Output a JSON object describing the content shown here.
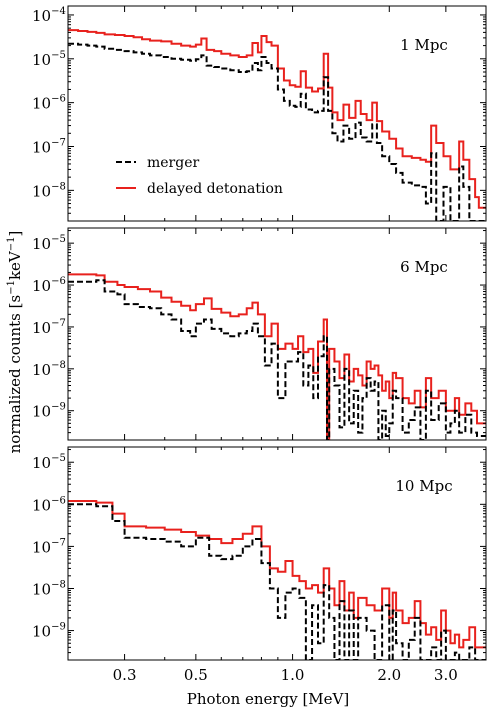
{
  "colors": {
    "merger": "#000000",
    "delayed_detonation": "#e8211d"
  },
  "chart_data": {
    "type": "line",
    "drawstyle": "steps",
    "x_scale": "log",
    "y_scale": "log",
    "xlim": [
      0.2,
      4.0
    ],
    "xlabel": "Photon energy [MeV]",
    "ylabel": "normalized counts [s^-1 keV^-1]",
    "ylabel_parts": {
      "main": "normalized counts [s",
      "sup1": "−1",
      "mid": "keV",
      "sup2": "−1",
      "end": "]"
    },
    "x_ticks": [
      0.3,
      0.5,
      1.0,
      2.0,
      3.0
    ],
    "x_tick_labels": [
      "0.3",
      "0.5",
      "1.0",
      "2.0",
      "3.0"
    ],
    "legend": {
      "placement": "center-left",
      "panel": 0,
      "entries": [
        {
          "series": "merger",
          "label": "merger",
          "style": "dashed"
        },
        {
          "series": "delayed_detonation",
          "label": "delayed detonation",
          "style": "solid"
        }
      ]
    },
    "panels": [
      {
        "annotation": "1 Mpc",
        "ylim": [
          2e-09,
          0.00016
        ],
        "y_ticks": [
          {
            "exp": -8,
            "label": "10"
          },
          {
            "exp": -7,
            "label": "10"
          },
          {
            "exp": -6,
            "label": "10"
          },
          {
            "exp": -5,
            "label": "10"
          },
          {
            "exp": -4,
            "label": "10"
          }
        ],
        "series": [
          {
            "key": "delayed_detonation",
            "x": [
              0.2,
              0.215,
              0.23,
              0.245,
              0.26,
              0.28,
              0.3,
              0.32,
              0.34,
              0.36,
              0.39,
              0.42,
              0.45,
              0.48,
              0.5,
              0.52,
              0.54,
              0.57,
              0.6,
              0.64,
              0.68,
              0.72,
              0.75,
              0.78,
              0.8,
              0.83,
              0.86,
              0.9,
              0.94,
              0.98,
              1.02,
              1.06,
              1.1,
              1.15,
              1.2,
              1.25,
              1.29,
              1.33,
              1.38,
              1.44,
              1.5,
              1.57,
              1.63,
              1.7,
              1.77,
              1.83,
              1.9,
              2.0,
              2.1,
              2.2,
              2.35,
              2.5,
              2.6,
              2.7,
              2.8,
              2.95,
              3.1,
              3.3,
              3.4,
              3.55,
              3.7,
              3.8
            ],
            "y": [
              4.5e-05,
              4.3e-05,
              4.1e-05,
              3.9e-05,
              3.6e-05,
              3.5e-05,
              3.3e-05,
              3.1e-05,
              2.8e-05,
              2.6e-05,
              2.5e-05,
              2.2e-05,
              2e-05,
              1.9e-05,
              2.1e-05,
              2.9e-05,
              1.6e-05,
              1.5e-05,
              1.3e-05,
              1.2e-05,
              1.1e-05,
              1.2e-05,
              2.3e-05,
              1.4e-05,
              3.3e-05,
              2.4e-05,
              2e-05,
              6e-06,
              3.2e-06,
              2.5e-06,
              2.3e-06,
              5.2e-06,
              2.2e-06,
              1.8e-06,
              2.1e-06,
              1.3e-05,
              2.2e-06,
              6e-07,
              4e-07,
              9e-07,
              4.5e-07,
              1.1e-06,
              5.5e-07,
              4e-07,
              1e-06,
              3.8e-07,
              2.2e-07,
              1.5e-07,
              9e-08,
              6e-08,
              5.5e-08,
              5e-08,
              4.5e-08,
              3e-07,
              1.2e-07,
              6e-08,
              3e-08,
              1.3e-07,
              5e-08,
              1.8e-08,
              7e-09,
              4e-09
            ]
          },
          {
            "key": "merger",
            "x": [
              0.2,
              0.215,
              0.23,
              0.245,
              0.26,
              0.28,
              0.3,
              0.32,
              0.34,
              0.36,
              0.39,
              0.42,
              0.45,
              0.48,
              0.5,
              0.52,
              0.54,
              0.57,
              0.6,
              0.64,
              0.68,
              0.72,
              0.75,
              0.78,
              0.8,
              0.83,
              0.86,
              0.9,
              0.94,
              0.98,
              1.02,
              1.06,
              1.1,
              1.15,
              1.2,
              1.25,
              1.29,
              1.33,
              1.38,
              1.44,
              1.5,
              1.57,
              1.63,
              1.7,
              1.77,
              1.83,
              1.9,
              2.0,
              2.1,
              2.2,
              2.35,
              2.5,
              2.6,
              2.7,
              2.8,
              2.95,
              3.1,
              3.3,
              3.4,
              3.55,
              3.7,
              3.8
            ],
            "y": [
              2.2e-05,
              2.1e-05,
              2e-05,
              1.9e-05,
              1.7e-05,
              1.6e-05,
              1.5e-05,
              1.4e-05,
              1.3e-05,
              1.2e-05,
              1.1e-05,
              1e-05,
              9.5e-06,
              9e-06,
              9.8e-06,
              1.2e-05,
              7e-06,
              6.5e-06,
              6e-06,
              5.5e-06,
              5e-06,
              5.2e-06,
              8e-06,
              5.5e-06,
              1.1e-05,
              8e-06,
              6e-06,
              2e-06,
              1.1e-06,
              8.5e-07,
              8e-07,
              1.6e-06,
              7e-07,
              6e-07,
              6.5e-07,
              3.8e-06,
              6.5e-07,
              2e-07,
              1.3e-07,
              3e-07,
              1.5e-07,
              3.5e-07,
              1.6e-07,
              1.3e-07,
              3.2e-07,
              1.2e-07,
              6e-08,
              4e-08,
              2.5e-08,
              1.5e-08,
              1.3e-08,
              1.2e-08,
              5e-09,
              7e-08,
              2e-09,
              1.2e-08,
              2e-09,
              3.5e-08,
              1.2e-08,
              2e-09,
              2e-09,
              2e-09
            ]
          }
        ]
      },
      {
        "annotation": "6 Mpc",
        "ylim": [
          2e-10,
          2.3e-05
        ],
        "y_ticks": [
          {
            "exp": -9,
            "label": "10"
          },
          {
            "exp": -8,
            "label": "10"
          },
          {
            "exp": -7,
            "label": "10"
          },
          {
            "exp": -6,
            "label": "10"
          },
          {
            "exp": -5,
            "label": "10"
          }
        ],
        "series": [
          {
            "key": "delayed_detonation",
            "x": [
              0.2,
              0.245,
              0.26,
              0.285,
              0.3,
              0.33,
              0.36,
              0.39,
              0.42,
              0.45,
              0.48,
              0.5,
              0.53,
              0.56,
              0.6,
              0.64,
              0.68,
              0.72,
              0.75,
              0.78,
              0.82,
              0.86,
              0.9,
              0.95,
              1.0,
              1.04,
              1.08,
              1.12,
              1.16,
              1.2,
              1.25,
              1.28,
              1.3,
              1.35,
              1.4,
              1.45,
              1.5,
              1.55,
              1.6,
              1.65,
              1.7,
              1.75,
              1.8,
              1.85,
              1.9,
              1.95,
              2.0,
              2.05,
              2.1,
              2.2,
              2.3,
              2.4,
              2.5,
              2.6,
              2.7,
              2.85,
              3.0,
              3.1,
              3.2,
              3.3,
              3.45,
              3.6,
              3.75
            ],
            "y": [
              1.8e-06,
              1.7e-06,
              1.2e-06,
              1e-06,
              9e-07,
              8e-07,
              7e-07,
              5e-07,
              4e-07,
              3.2e-07,
              2.5e-07,
              3.5e-07,
              4.8e-07,
              2.7e-07,
              2.2e-07,
              1.8e-07,
              2e-07,
              2.8e-07,
              3.8e-07,
              2e-07,
              6e-08,
              1.2e-07,
              3e-08,
              4e-08,
              3e-08,
              6e-08,
              2.5e-08,
              3e-08,
              8e-09,
              4.5e-08,
              1.5e-07,
              2e-10,
              3e-08,
              1.5e-08,
              6e-09,
              2.2e-08,
              5e-09,
              1e-08,
              7e-09,
              4e-09,
              1.5e-08,
              1e-08,
              1.2e-08,
              7e-09,
              3e-09,
              5e-09,
              2e-09,
              8e-09,
              6e-09,
              2e-09,
              1.5e-09,
              3e-09,
              1.2e-09,
              6e-09,
              2e-09,
              3e-09,
              1e-09,
              1e-09,
              2e-09,
              8e-10,
              1.5e-09,
              1e-09,
              5e-10
            ]
          },
          {
            "key": "merger",
            "x": [
              0.2,
              0.245,
              0.26,
              0.285,
              0.3,
              0.33,
              0.36,
              0.39,
              0.42,
              0.45,
              0.48,
              0.5,
              0.53,
              0.56,
              0.6,
              0.64,
              0.68,
              0.72,
              0.75,
              0.78,
              0.82,
              0.86,
              0.9,
              0.95,
              1.0,
              1.04,
              1.08,
              1.12,
              1.16,
              1.2,
              1.25,
              1.28,
              1.3,
              1.35,
              1.4,
              1.45,
              1.5,
              1.55,
              1.6,
              1.65,
              1.7,
              1.75,
              1.8,
              1.85,
              1.9,
              1.95,
              2.0,
              2.05,
              2.1,
              2.2,
              2.3,
              2.4,
              2.5,
              2.6,
              2.7,
              2.85,
              3.0,
              3.1,
              3.2,
              3.3,
              3.45,
              3.6,
              3.75
            ],
            "y": [
              1.2e-06,
              1.3e-06,
              7e-07,
              6e-07,
              3.5e-07,
              3e-07,
              2.8e-07,
              2e-07,
              1.5e-07,
              8e-08,
              6e-08,
              1.2e-07,
              1.5e-07,
              9e-08,
              7e-08,
              6e-08,
              7e-08,
              8e-08,
              1.2e-07,
              6e-08,
              1.2e-08,
              4e-08,
              2e-09,
              1.5e-08,
              1.5e-08,
              2.5e-08,
              4e-09,
              1.2e-08,
              2e-09,
              2e-08,
              6e-08,
              2e-10,
              1e-08,
              4e-09,
              4e-10,
              1e-08,
              5e-10,
              3e-09,
              3e-10,
              2e-09,
              6e-09,
              3e-09,
              5e-09,
              2e-10,
              1e-09,
              2.5e-10,
              5e-10,
              3e-09,
              2e-09,
              3e-10,
              6e-10,
              1.2e-09,
              2e-10,
              3e-09,
              6e-10,
              1.5e-09,
              3e-10,
              5e-10,
              1e-09,
              3e-10,
              8e-10,
              3e-10,
              2.5e-10
            ]
          }
        ]
      },
      {
        "annotation": "10 Mpc",
        "ylim": [
          2e-10,
          2.3e-05
        ],
        "y_ticks": [
          {
            "exp": -9,
            "label": "10"
          },
          {
            "exp": -8,
            "label": "10"
          },
          {
            "exp": -7,
            "label": "10"
          },
          {
            "exp": -6,
            "label": "10"
          },
          {
            "exp": -5,
            "label": "10"
          }
        ],
        "series": [
          {
            "key": "delayed_detonation",
            "x": [
              0.2,
              0.245,
              0.275,
              0.3,
              0.35,
              0.4,
              0.45,
              0.5,
              0.55,
              0.6,
              0.65,
              0.7,
              0.75,
              0.8,
              0.85,
              0.9,
              0.95,
              1.0,
              1.05,
              1.1,
              1.15,
              1.2,
              1.25,
              1.3,
              1.35,
              1.4,
              1.45,
              1.5,
              1.55,
              1.6,
              1.7,
              1.8,
              1.9,
              2.0,
              2.05,
              2.1,
              2.2,
              2.3,
              2.4,
              2.5,
              2.6,
              2.7,
              2.8,
              2.9,
              3.0,
              3.1,
              3.2,
              3.3,
              3.4,
              3.55,
              3.7,
              3.8
            ],
            "y": [
              1.2e-06,
              1.1e-06,
              6e-07,
              3e-07,
              2.8e-07,
              2.5e-07,
              2.2e-07,
              1.8e-07,
              1.5e-07,
              1.2e-07,
              1.5e-07,
              2e-07,
              3e-07,
              1e-07,
              3e-08,
              2.5e-08,
              4.5e-08,
              2e-08,
              1.5e-08,
              1e-08,
              1.2e-08,
              8e-09,
              3e-08,
              1e-08,
              4e-09,
              1.5e-08,
              3e-09,
              8e-09,
              2e-09,
              6e-09,
              4e-09,
              3e-09,
              1e-08,
              2e-09,
              8e-09,
              3e-09,
              1.5e-09,
              2e-09,
              5e-09,
              1.5e-09,
              8e-10,
              1.2e-09,
              6e-10,
              3e-09,
              1e-09,
              5e-10,
              8e-10,
              4e-10,
              6e-10,
              1.2e-09,
              4e-10,
              4e-10
            ]
          },
          {
            "key": "merger",
            "x": [
              0.2,
              0.245,
              0.275,
              0.3,
              0.35,
              0.4,
              0.45,
              0.5,
              0.55,
              0.6,
              0.65,
              0.7,
              0.75,
              0.8,
              0.85,
              0.9,
              0.95,
              1.0,
              1.05,
              1.1,
              1.15,
              1.2,
              1.25,
              1.3,
              1.35,
              1.4,
              1.45,
              1.5,
              1.55,
              1.6,
              1.7,
              1.8,
              1.9,
              2.0,
              2.05,
              2.1,
              2.2,
              2.3,
              2.4,
              2.5,
              2.6,
              2.7,
              2.8,
              2.9,
              3.0,
              3.1,
              3.2,
              3.3,
              3.4,
              3.55,
              3.7,
              3.8
            ],
            "y": [
              1e-06,
              9e-07,
              4e-07,
              1.6e-07,
              1.5e-07,
              1.3e-07,
              1e-07,
              1.6e-07,
              6e-08,
              5e-08,
              6e-08,
              1e-07,
              1.5e-07,
              4e-08,
              1e-08,
              2e-09,
              8e-09,
              1e-08,
              6e-09,
              2e-10,
              4e-09,
              5e-10,
              1.2e-08,
              2e-09,
              2e-10,
              5e-09,
              2e-10,
              3e-09,
              2e-10,
              2e-09,
              1e-09,
              2e-10,
              4e-09,
              2e-10,
              3e-09,
              5e-10,
              2e-10,
              6e-10,
              2e-09,
              2e-10,
              2e-10,
              4e-10,
              2e-10,
              1e-09,
              2e-10,
              2e-10,
              3e-10,
              2e-10,
              2e-10,
              4e-10,
              2e-10,
              2e-10
            ]
          }
        ]
      }
    ]
  }
}
